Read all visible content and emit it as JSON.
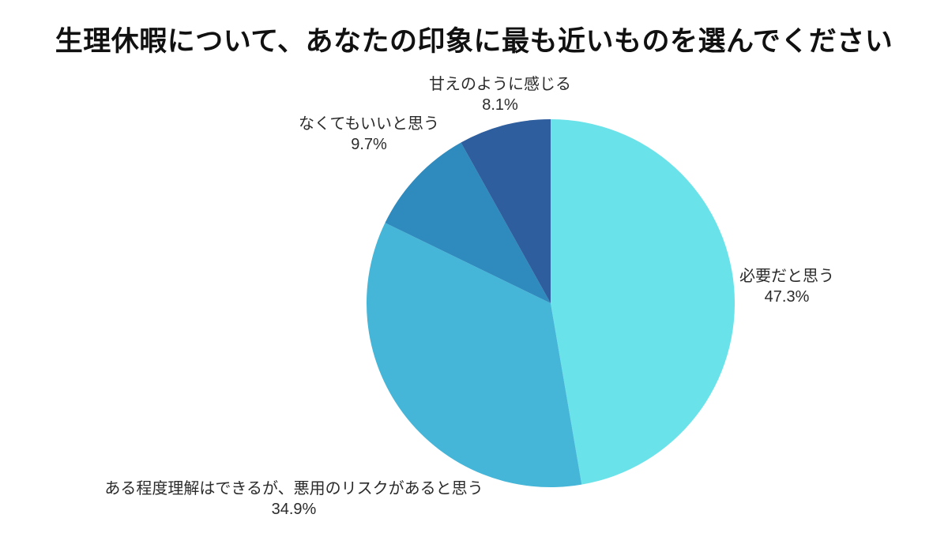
{
  "title": "生理休暇について、あなたの印象に最も近いものを選んでください",
  "chart_data": {
    "type": "pie",
    "title": "生理休暇について、あなたの印象に最も近いものを選んでください",
    "start_angle_deg": 0,
    "direction": "clockwise",
    "legend": "none",
    "labels_position": "outside",
    "background_color": "#ffffff",
    "title_color": "#111111",
    "label_text_color": "#2b2b2b",
    "slices": [
      {
        "label": "必要だと思う",
        "value_pct": 47.3,
        "display_pct": "47.3%",
        "color": "#6AE2E9"
      },
      {
        "label": "ある程度理解はできるが、悪用のリスクがあると思う",
        "value_pct": 34.9,
        "display_pct": "34.9%",
        "color": "#45B6D8"
      },
      {
        "label": "なくてもいいと思う",
        "value_pct": 9.7,
        "display_pct": "9.7%",
        "color": "#2F8ABD"
      },
      {
        "label": "甘えのように感じる",
        "value_pct": 8.1,
        "display_pct": "8.1%",
        "color": "#2E5E9E"
      }
    ]
  }
}
